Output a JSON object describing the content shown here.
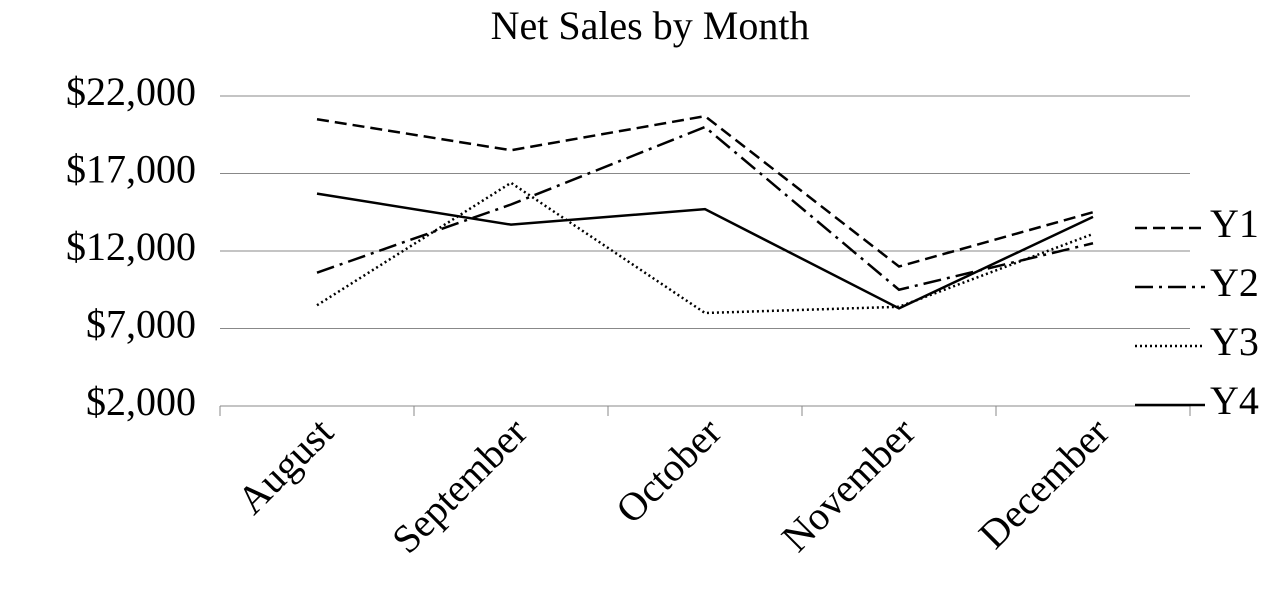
{
  "chart_data": {
    "type": "line",
    "title": "Net Sales by Month",
    "categories": [
      "August",
      "September",
      "October",
      "November",
      "December"
    ],
    "series": [
      {
        "name": "Y1",
        "color": "#000000",
        "dash": "dashed",
        "values": [
          20500,
          18500,
          20700,
          11000,
          14500
        ]
      },
      {
        "name": "Y2",
        "color": "#000000",
        "dash": "dash-dot",
        "values": [
          10600,
          15000,
          20000,
          9500,
          12500
        ]
      },
      {
        "name": "Y3",
        "color": "#000000",
        "dash": "dotted",
        "values": [
          8500,
          16400,
          8000,
          8400,
          13100
        ]
      },
      {
        "name": "Y4",
        "color": "#000000",
        "dash": "solid",
        "values": [
          15700,
          13700,
          14700,
          8300,
          14200
        ]
      }
    ],
    "ylim": [
      2000,
      22000
    ],
    "yticks": [
      {
        "value": 2000,
        "label": "$2,000"
      },
      {
        "value": 7000,
        "label": "$7,000"
      },
      {
        "value": 12000,
        "label": "$12,000"
      },
      {
        "value": 17000,
        "label": "$17,000"
      },
      {
        "value": 22000,
        "label": "$22,000"
      }
    ],
    "grid": true,
    "legend": "right"
  }
}
